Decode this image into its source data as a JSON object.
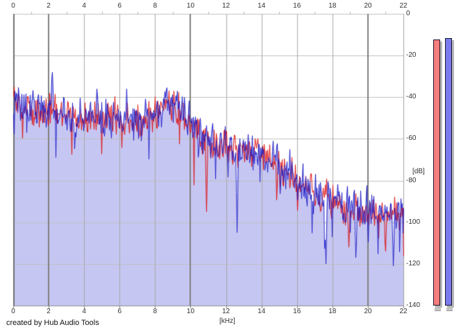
{
  "window": {
    "credit_text": "created by Hub Audio Tools"
  },
  "chart_data": {
    "type": "line",
    "title": "",
    "xlabel": "[kHz]",
    "ylabel": "[dB]",
    "xlim": [
      0,
      22
    ],
    "ylim": [
      -140,
      0
    ],
    "grid": true,
    "legend": "none",
    "x_ticks": [
      0,
      2,
      4,
      6,
      8,
      10,
      12,
      14,
      16,
      18,
      20,
      22
    ],
    "x_minor_tick_step_khz": 1,
    "y_ticks": [
      0,
      -20,
      -40,
      -60,
      -80,
      -100,
      -120,
      -140
    ],
    "emphasized_x_gridlines_khz": [
      2,
      10,
      20
    ],
    "envelope_x_khz": [
      0,
      0.5,
      1,
      1.5,
      2,
      2.5,
      3,
      3.5,
      4,
      4.5,
      5,
      5.5,
      6,
      6.5,
      7,
      7.5,
      8,
      8.5,
      9,
      9.5,
      10,
      10.5,
      11,
      11.5,
      12,
      12.5,
      13,
      13.5,
      14,
      14.5,
      15,
      15.5,
      16,
      16.5,
      17,
      17.5,
      18,
      18.5,
      19,
      19.5,
      20,
      20.5,
      21,
      21.5,
      22
    ],
    "series": [
      {
        "name": "red-trace",
        "color": "#dd1111",
        "seed": 20117,
        "noise_db": 5.6,
        "envelope_db": [
          -41,
          -46,
          -47,
          -47,
          -46,
          -48,
          -49,
          -50,
          -51,
          -50,
          -50,
          -50,
          -51,
          -51,
          -52,
          -51,
          -49,
          -46,
          -45,
          -47,
          -53,
          -58,
          -61,
          -62,
          -64,
          -64,
          -66,
          -66,
          -68,
          -70,
          -73,
          -76,
          -81,
          -84,
          -87,
          -88,
          -91,
          -92,
          -94,
          -94,
          -95,
          -96,
          -96,
          -97,
          -97
        ],
        "peaks": [
          {
            "x": 8.6,
            "db": -41
          }
        ],
        "dips": [
          {
            "x": 10.9,
            "db": -95
          },
          {
            "x": 18.9,
            "db": -112
          },
          {
            "x": 21.0,
            "db": -114
          }
        ]
      },
      {
        "name": "blue-trace",
        "color": "#1c1cc8",
        "seed": 911,
        "noise_db": 6.2,
        "envelope_db": [
          -40,
          -45,
          -47,
          -46,
          -46,
          -47,
          -49,
          -49,
          -51,
          -50,
          -50,
          -49,
          -51,
          -50,
          -52,
          -51,
          -48,
          -45,
          -44,
          -46,
          -52,
          -57,
          -60,
          -62,
          -63,
          -64,
          -65,
          -66,
          -67,
          -70,
          -72,
          -75,
          -80,
          -84,
          -86,
          -88,
          -90,
          -92,
          -93,
          -94,
          -95,
          -95,
          -96,
          -96,
          -97
        ],
        "peaks": [
          {
            "x": 2.2,
            "db": -28
          },
          {
            "x": 4.7,
            "db": -36
          },
          {
            "x": 6.4,
            "db": -36
          },
          {
            "x": 8.9,
            "db": -40
          }
        ],
        "dips": [
          {
            "x": 12.6,
            "db": -105
          },
          {
            "x": 17.6,
            "db": -120
          },
          {
            "x": 19.3,
            "db": -117
          },
          {
            "x": 21.4,
            "db": -121
          }
        ]
      }
    ],
    "fill": {
      "under": "blue-trace",
      "color": "#c6c6f2"
    },
    "meters": [
      {
        "name": "red-peak-meter",
        "value_db": -12.3,
        "color": "#f57d7d"
      },
      {
        "name": "blue-peak-meter",
        "value_db": -11.6,
        "color": "#7a7aee"
      }
    ]
  },
  "colors": {
    "grid_h": "#c0c0c0",
    "grid_v": "#a8a8a8",
    "grid_v_major": "#808080",
    "plot_border_left": "#707070",
    "plot_border_right": "#a0a0a0",
    "plot_border_top": "#c0c0c0",
    "plot_border_bottom": "#909090",
    "minor_tick": "#b0b0b0",
    "bottom_tick": "#808080",
    "tick_label": "#303030",
    "meter_shadow": "#b8b8b8",
    "meter_border": "#15152a",
    "meter_base": "#c4c4c4"
  }
}
